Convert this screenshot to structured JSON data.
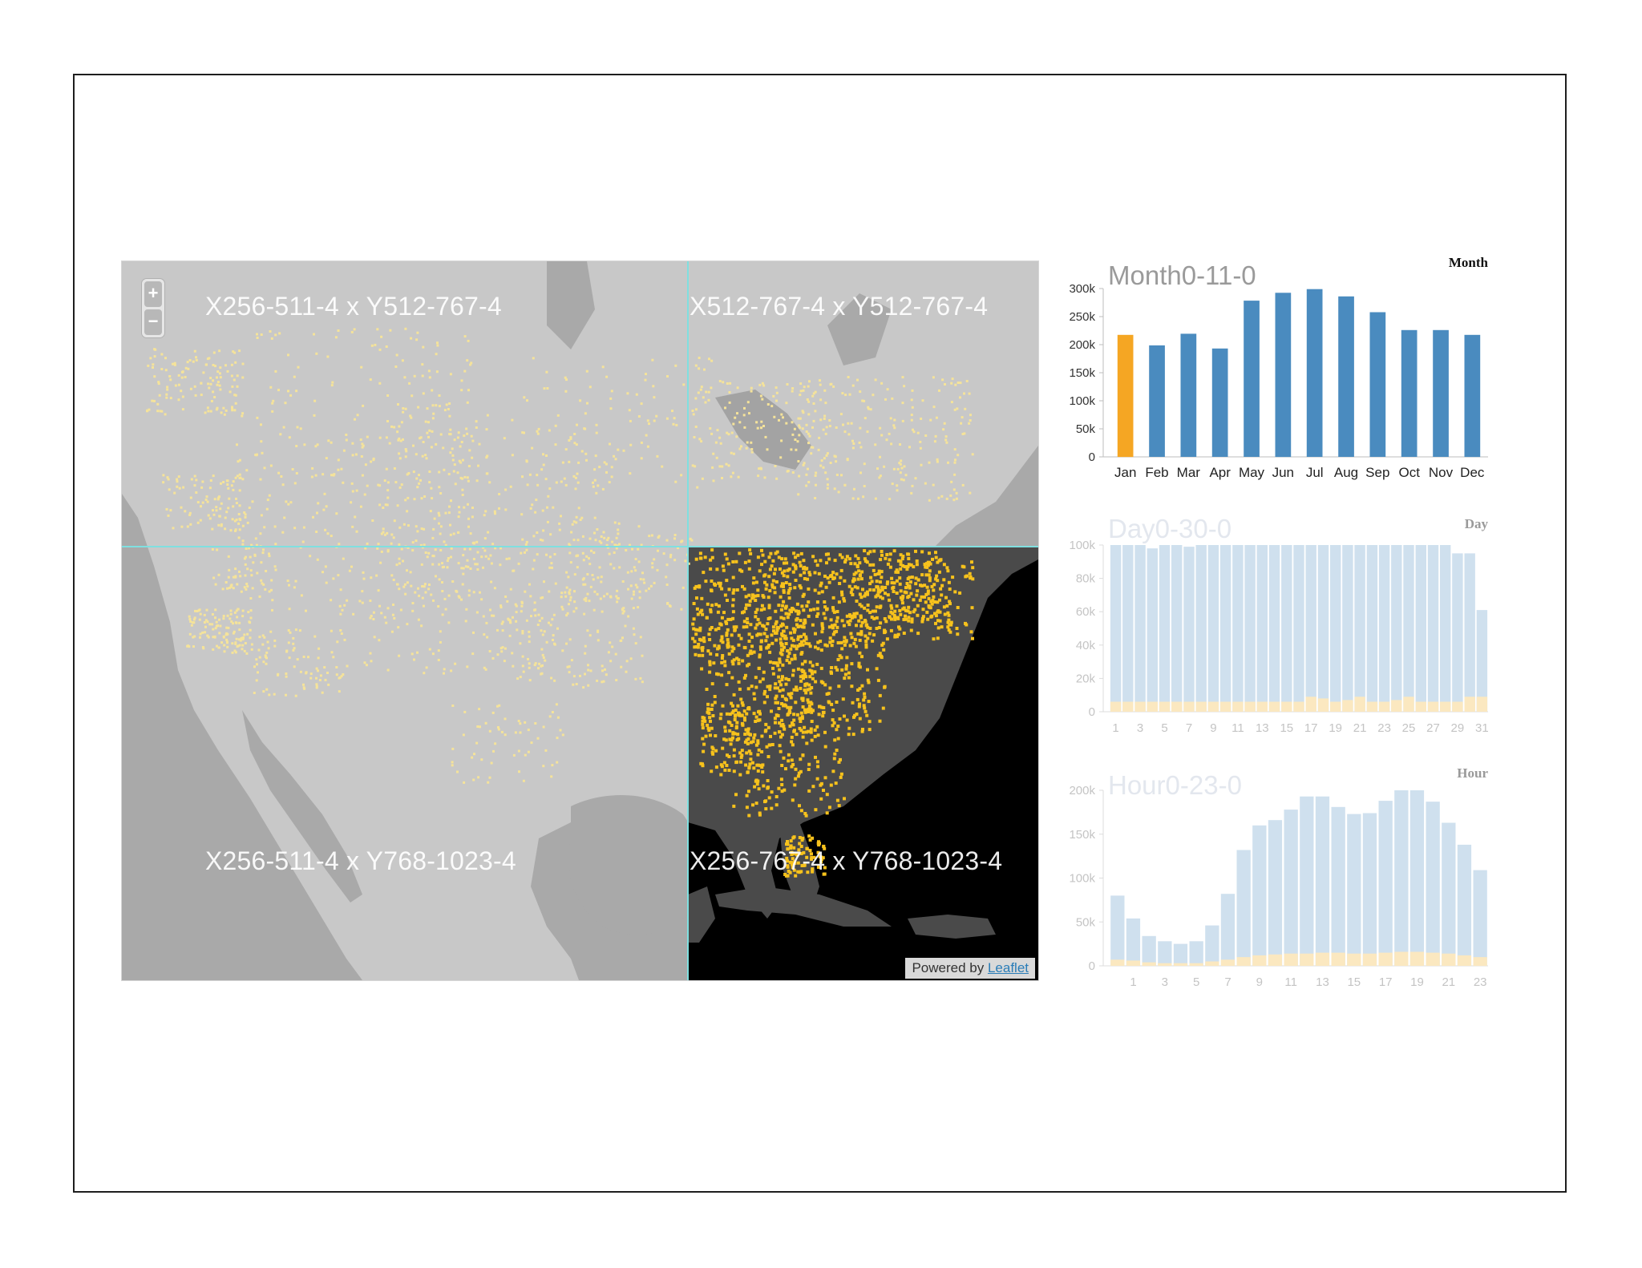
{
  "map": {
    "zoom_in": "+",
    "zoom_out": "−",
    "tiles": [
      {
        "label": "X256-511-4 x Y512-767-4"
      },
      {
        "label": "X512-767-4 x Y512-767-4"
      },
      {
        "label": "X256-511-4 x Y768-1023-4"
      },
      {
        "label": "X256-767-4 x Y768-1023-4"
      }
    ],
    "attribution_prefix": "Powered by",
    "attribution_link": "Leaflet",
    "colors": {
      "land_light": "#c8c8c8",
      "water": "#a9a9a9",
      "dark_land": "#4a4a4a",
      "dark_bg": "#000000",
      "dots_light": "#f5e39a",
      "dots_bright": "#f7c21c",
      "grid": "#7fe0e0"
    }
  },
  "chart_data": [
    {
      "type": "bar",
      "title": "Month0-11-0",
      "corner_label": "Month",
      "categories": [
        "Jan",
        "Feb",
        "Mar",
        "Apr",
        "May",
        "Jun",
        "Jul",
        "Aug",
        "Sep",
        "Oct",
        "Nov",
        "Dec"
      ],
      "values": [
        232000,
        212000,
        234000,
        206000,
        297000,
        312000,
        319000,
        305000,
        275000,
        241000,
        241000,
        232000
      ],
      "highlight": "Jan",
      "highlight_color": "#f5a623",
      "bar_color": "#4a8bbf",
      "ylim": [
        0,
        320000
      ],
      "yticks": [
        "0",
        "50k",
        "100k",
        "150k",
        "200k",
        "250k",
        "300k"
      ]
    },
    {
      "type": "bar",
      "title": "Day0-30-0",
      "corner_label": "Day",
      "categories": [
        "1",
        "2",
        "3",
        "4",
        "5",
        "6",
        "7",
        "8",
        "9",
        "10",
        "11",
        "12",
        "13",
        "14",
        "15",
        "16",
        "17",
        "18",
        "19",
        "20",
        "21",
        "22",
        "23",
        "24",
        "25",
        "26",
        "27",
        "28",
        "29",
        "30",
        "31"
      ],
      "series": [
        {
          "values": [
            101000,
            101000,
            101000,
            98000,
            101000,
            101000,
            99000,
            102000,
            101000,
            101000,
            101000,
            102000,
            101000,
            102000,
            102000,
            102000,
            102000,
            101000,
            102000,
            102000,
            102000,
            102000,
            102000,
            101000,
            101000,
            102000,
            102000,
            101000,
            95000,
            95000,
            61000
          ]
        },
        {
          "values": [
            6000,
            6000,
            6000,
            6000,
            6000,
            6000,
            6000,
            6000,
            6000,
            6000,
            6000,
            6000,
            6000,
            6000,
            6000,
            6000,
            9000,
            8000,
            6000,
            7000,
            9000,
            6000,
            6000,
            7000,
            9000,
            6000,
            6000,
            6000,
            6000,
            9000,
            9000
          ]
        }
      ],
      "colors": [
        "#cfe0ee",
        "#fbe8c0"
      ],
      "ylim": [
        0,
        100000
      ],
      "yticks": [
        "0",
        "20k",
        "40k",
        "60k",
        "80k",
        "100k"
      ],
      "xticks": [
        "1",
        "3",
        "5",
        "7",
        "9",
        "11",
        "13",
        "15",
        "17",
        "19",
        "21",
        "23",
        "25",
        "27",
        "29",
        "31"
      ]
    },
    {
      "type": "bar",
      "title": "Hour0-23-0",
      "corner_label": "Hour",
      "categories": [
        "0",
        "1",
        "2",
        "3",
        "4",
        "5",
        "6",
        "7",
        "8",
        "9",
        "10",
        "11",
        "12",
        "13",
        "14",
        "15",
        "16",
        "17",
        "18",
        "19",
        "20",
        "21",
        "22",
        "23"
      ],
      "series": [
        {
          "values": [
            80000,
            54000,
            34000,
            28000,
            25000,
            28000,
            46000,
            82000,
            132000,
            160000,
            166000,
            178000,
            193000,
            193000,
            181000,
            173000,
            174000,
            188000,
            207000,
            207000,
            187000,
            163000,
            138000,
            109000
          ]
        },
        {
          "values": [
            7000,
            6000,
            4000,
            3000,
            3000,
            3000,
            5000,
            7000,
            10000,
            12000,
            13000,
            14000,
            14000,
            15000,
            15000,
            14000,
            14000,
            15000,
            16000,
            16000,
            15000,
            14000,
            12000,
            10000
          ]
        }
      ],
      "colors": [
        "#cfe0ee",
        "#fbe8c0"
      ],
      "ylim": [
        0,
        200000
      ],
      "yticks": [
        "0",
        "50k",
        "100k",
        "150k",
        "200k"
      ],
      "xticks": [
        "1",
        "3",
        "5",
        "7",
        "9",
        "11",
        "13",
        "15",
        "17",
        "19",
        "21",
        "23"
      ]
    }
  ]
}
